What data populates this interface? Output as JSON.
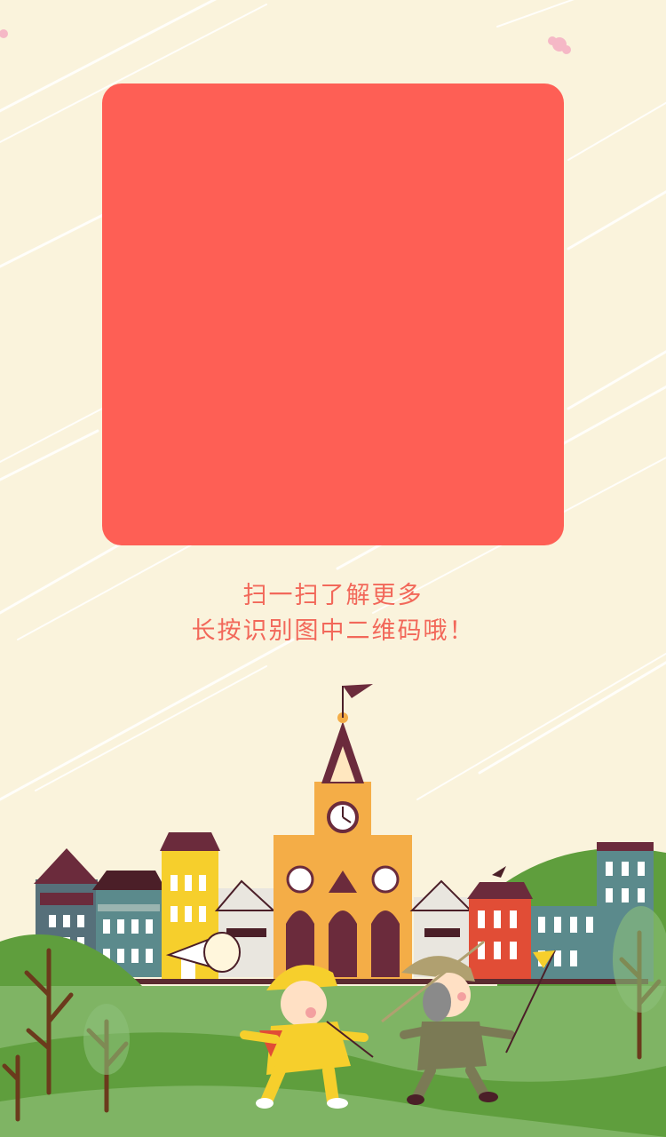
{
  "colors": {
    "background": "#faf3dc",
    "qr_placeholder": "#fe5f55",
    "caption": "#f2685a",
    "grass_light": "#7fb464",
    "grass_dark": "#5f9e3d",
    "ground_road": "#5b2b30"
  },
  "caption": {
    "line1": "扫一扫了解更多",
    "line2": "长按识别图中二维码哦！"
  },
  "icons": [
    "qr-code-placeholder",
    "clock-tower-icon",
    "weathervane-icon",
    "flag-icon",
    "megaphone-icon",
    "tree-icon"
  ]
}
